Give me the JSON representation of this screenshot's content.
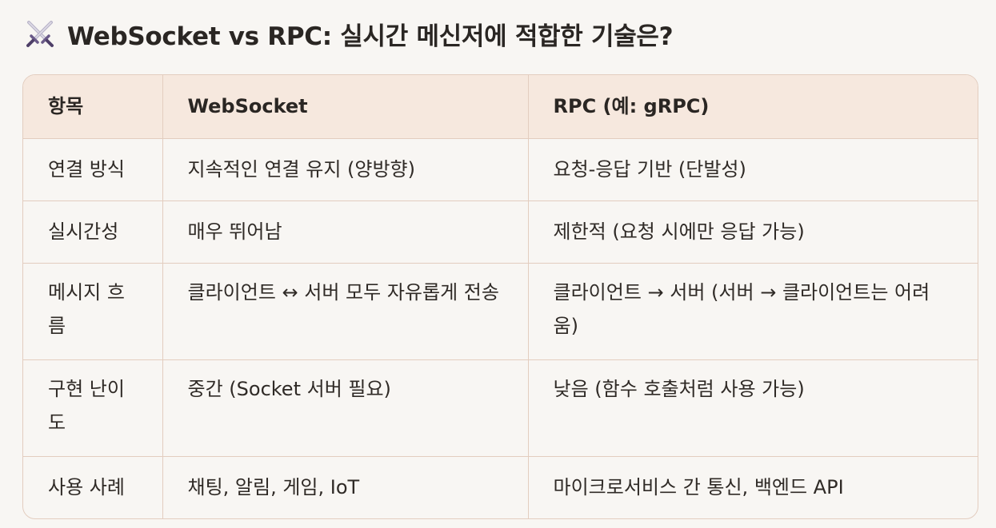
{
  "title": {
    "icon": "crossed-swords-icon",
    "text": "WebSocket vs RPC: 실시간 메신저에 적합한 기술은?"
  },
  "table": {
    "headers": [
      "항목",
      "WebSocket",
      "RPC (예: gRPC)"
    ],
    "rows": [
      [
        "연결 방식",
        "지속적인 연결 유지 (양방향)",
        "요청-응답 기반 (단발성)"
      ],
      [
        "실시간성",
        "매우 뛰어남",
        "제한적 (요청 시에만 응답 가능)"
      ],
      [
        "메시지 흐름",
        "클라이언트 ↔ 서버 모두 자유롭게 전송",
        "클라이언트 → 서버 (서버 → 클라이언트는 어려움)"
      ],
      [
        "구현 난이도",
        "중간 (Socket 서버 필요)",
        "낮음 (함수 호출처럼 사용 가능)"
      ],
      [
        "사용 사례",
        "채팅, 알림, 게임, IoT",
        "마이크로서비스 간 통신, 백엔드 API"
      ]
    ]
  },
  "colors": {
    "header_bg": "#f6e8de",
    "border": "#e3cdbf",
    "page_bg": "#f8f6f3",
    "text": "#2a2623"
  }
}
